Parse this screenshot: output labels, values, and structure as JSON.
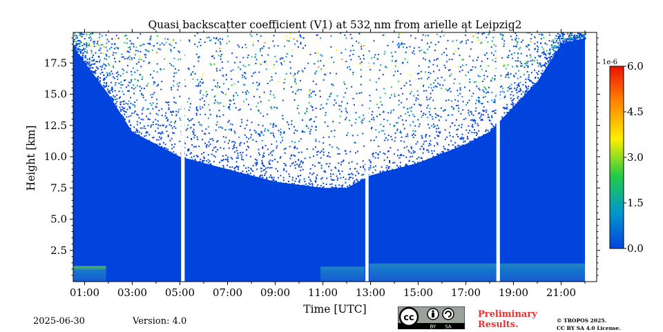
{
  "chart_data": {
    "type": "heatmap",
    "title": "Quasi backscatter coefficient (V1) at 532 nm from arielle at Leipzig2",
    "xlabel": "Time [UTC]",
    "ylabel": "Height [km]",
    "xlim": [
      0,
      22
    ],
    "ylim": [
      0,
      20
    ],
    "x_ticks": [
      1,
      3,
      5,
      7,
      9,
      11,
      13,
      15,
      17,
      19,
      21
    ],
    "x_tick_labels": [
      "01:00",
      "03:00",
      "05:00",
      "07:00",
      "09:00",
      "11:00",
      "13:00",
      "15:00",
      "17:00",
      "19:00",
      "21:00"
    ],
    "y_ticks": [
      2.5,
      5.0,
      7.5,
      10.0,
      12.5,
      15.0,
      17.5
    ],
    "y_tick_labels": [
      "2.5",
      "5.0",
      "7.5",
      "10.0",
      "12.5",
      "15.0",
      "17.5"
    ],
    "colorbar": {
      "range": [
        0.0,
        6e-06
      ],
      "multiplier_label": "1e-6",
      "ticks": [
        0.0,
        1.5,
        3.0,
        4.5,
        6.0
      ],
      "tick_labels": [
        "0.0",
        "1.5",
        "3.0",
        "4.5",
        "6.0"
      ],
      "colormap": [
        "#0044dd",
        "#0099cc",
        "#22cc44",
        "#ffee00",
        "#ff8800",
        "#ee1100"
      ]
    },
    "data_gaps_utc": [
      [
        0.1,
        0.25
      ],
      [
        5.05,
        5.2
      ],
      [
        12.78,
        12.92
      ],
      [
        18.28,
        18.43
      ]
    ],
    "noise_boundary_km": [
      [
        0.25,
        19.5
      ],
      [
        2.0,
        15.0
      ],
      [
        3.0,
        12.0
      ],
      [
        5.0,
        10.0
      ],
      [
        7.0,
        9.0
      ],
      [
        9.0,
        8.0
      ],
      [
        11.0,
        7.5
      ],
      [
        12.0,
        7.5
      ],
      [
        13.0,
        8.5
      ],
      [
        15.0,
        9.5
      ],
      [
        17.0,
        11.0
      ],
      [
        18.0,
        12.0
      ],
      [
        19.0,
        14.0
      ],
      [
        20.0,
        16.0
      ],
      [
        21.0,
        19.0
      ],
      [
        22.0,
        19.5
      ]
    ],
    "low_layers": [
      {
        "x0": 0.25,
        "x1": 1.9,
        "top_km": 1.25
      },
      {
        "x0": 10.9,
        "x1": 12.75,
        "top_km": 1.2
      },
      {
        "x0": 12.95,
        "x1": 22.0,
        "top_km": 1.45
      }
    ]
  },
  "footer": {
    "date": "2025-06-30",
    "version": "Version: 4.0",
    "preliminary_line1": "Preliminary",
    "preliminary_line2": "Results.",
    "license_line1": "© TROPOS 2025.",
    "license_line2": "CC BY SA 4.0 License."
  },
  "cc_badge": {
    "cc": "cc",
    "by": "BY",
    "sa": "SA"
  },
  "colors": {
    "fill_blue": "#0044dd",
    "prelim_red": "#e83030"
  }
}
